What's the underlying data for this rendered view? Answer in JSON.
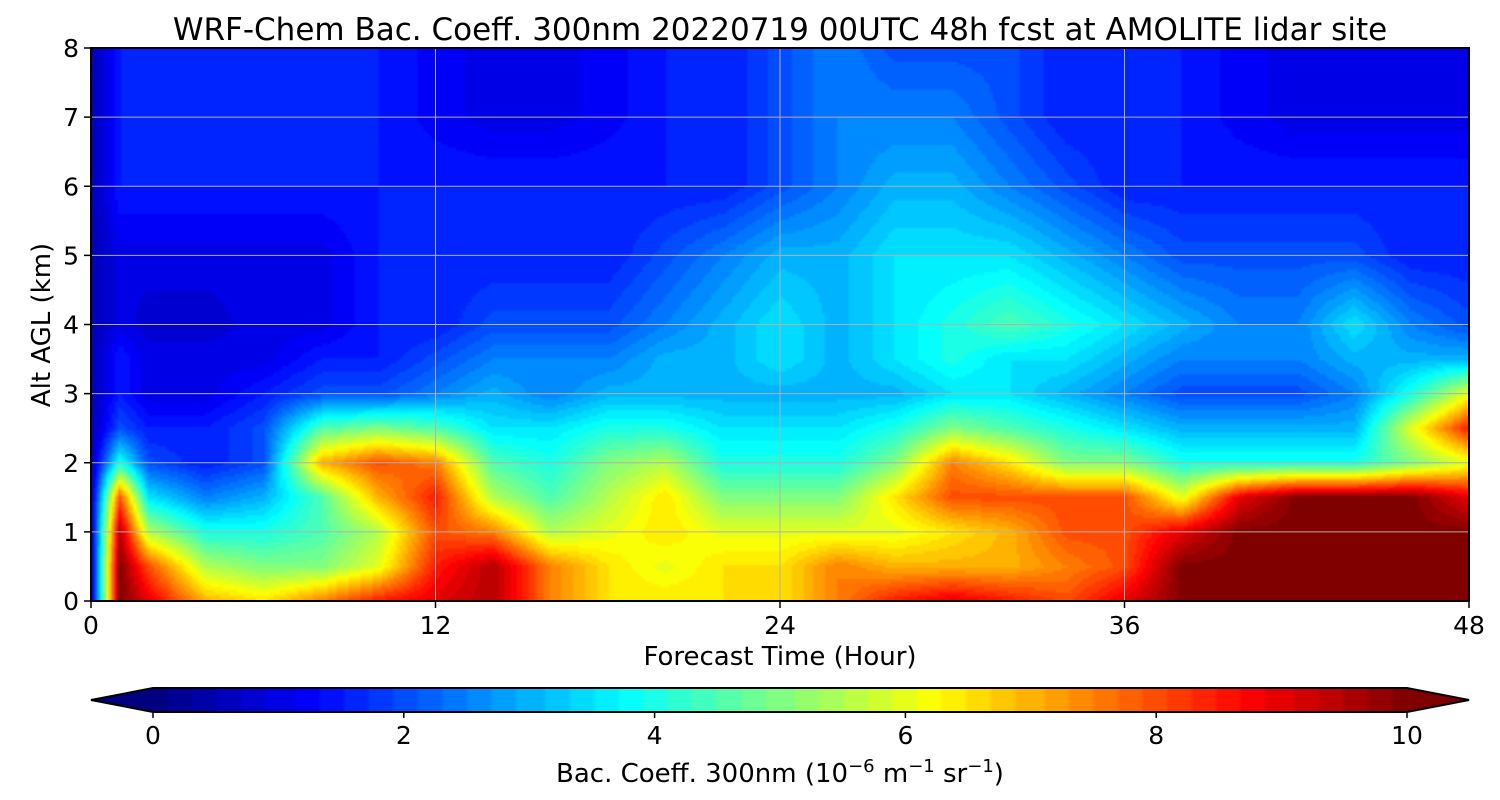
{
  "chart_data": {
    "type": "heatmap",
    "title": "WRF-Chem Bac. Coeff. 300nm  20220719 00UTC 48h fcst at AMOLITE lidar site",
    "xlabel": "Forecast Time (Hour)",
    "ylabel": "Alt AGL (km)",
    "xlim": [
      0,
      48
    ],
    "ylim": [
      0,
      8
    ],
    "x_ticks": [
      "0",
      "12",
      "24",
      "36",
      "48"
    ],
    "y_ticks": [
      "0",
      "1",
      "2",
      "3",
      "4",
      "5",
      "6",
      "7",
      "8"
    ],
    "grid": true,
    "colormap": "jet",
    "colorbar": {
      "label_main": "Bac. Coeff. 300nm  (10",
      "label_exp1": "−6",
      "label_mid": " m",
      "label_exp2": "−1",
      "label_mid2": " sr",
      "label_exp3": "−1",
      "label_end": ")",
      "range": [
        0,
        10
      ],
      "extend": "both",
      "ticks": [
        "0",
        "2",
        "4",
        "6",
        "8",
        "10"
      ],
      "orientation": "horizontal",
      "placement": "bottom"
    },
    "x_hours": [
      0,
      1,
      2,
      4,
      6,
      8,
      10,
      12,
      14,
      16,
      18,
      20,
      22,
      24,
      26,
      28,
      30,
      32,
      34,
      36,
      38,
      40,
      42,
      44,
      46,
      48
    ],
    "y_km": [
      0,
      0.5,
      1.0,
      1.5,
      2.0,
      2.5,
      3.0,
      3.5,
      4.0,
      5.0,
      6.0,
      7.0,
      8.0
    ],
    "values_by_altitude": [
      [
        0.5,
        10,
        9,
        7,
        6.5,
        7.5,
        8.5,
        9,
        9.5,
        7.5,
        6.5,
        6.5,
        6.5,
        6.5,
        7.5,
        8.5,
        9,
        8.5,
        8,
        9,
        10,
        10,
        10,
        10,
        10,
        10
      ],
      [
        0.5,
        10,
        8,
        5.5,
        5,
        5,
        6,
        8.5,
        9.5,
        7.5,
        6.5,
        6,
        6.5,
        6.5,
        7.5,
        7,
        7,
        7,
        7.5,
        8,
        10,
        10,
        10,
        10,
        10,
        10
      ],
      [
        0.5,
        9.5,
        5.5,
        4,
        4,
        4.5,
        5.5,
        8,
        7.5,
        5.5,
        6,
        6.5,
        6,
        6,
        6,
        6,
        6.5,
        7,
        8,
        8,
        9,
        10,
        10,
        10,
        10,
        10
      ],
      [
        0.5,
        8,
        3.5,
        2.5,
        3,
        4.5,
        7,
        8.5,
        5.5,
        4.5,
        5.5,
        6.5,
        5,
        5,
        5,
        6.5,
        8,
        8,
        8,
        8,
        6,
        9,
        10,
        10,
        10,
        9
      ],
      [
        0.5,
        4,
        2,
        1.5,
        2,
        7,
        8,
        7.5,
        4.5,
        4,
        5,
        5.5,
        4,
        4,
        4,
        5,
        7.5,
        6.5,
        5,
        5,
        4,
        4,
        4,
        4,
        5,
        6
      ],
      [
        0.5,
        2,
        1.5,
        1.5,
        2,
        4.5,
        5,
        4.5,
        3.5,
        3.5,
        4,
        4,
        3.5,
        3.5,
        3.5,
        4,
        5,
        4.5,
        4,
        3.5,
        3,
        3,
        3,
        3,
        6,
        8.5
      ],
      [
        0.5,
        1.5,
        1,
        1,
        1.5,
        2,
        2,
        2.5,
        3,
        2.5,
        3,
        3,
        3,
        3,
        3,
        3,
        3.5,
        3.5,
        3,
        2.5,
        2,
        2,
        2,
        2.5,
        4,
        6
      ],
      [
        0.5,
        1.5,
        1,
        1,
        1,
        1.5,
        1.5,
        2,
        2.5,
        2.5,
        2.5,
        3,
        3,
        3.5,
        3,
        3.5,
        4,
        3.5,
        3.5,
        3,
        2.5,
        2.5,
        2.5,
        3,
        3,
        3
      ],
      [
        0.5,
        1,
        0.8,
        0.8,
        1,
        1,
        1.5,
        1.5,
        2,
        2,
        2,
        2.5,
        3,
        3.5,
        3,
        3.5,
        4,
        4.5,
        4,
        3.5,
        3,
        2.5,
        2.5,
        3.5,
        2.5,
        2
      ],
      [
        0.5,
        1,
        1,
        1,
        1,
        1,
        1.5,
        1.5,
        1.5,
        1.5,
        1.5,
        2,
        2.5,
        3,
        3,
        3.5,
        3.5,
        3.5,
        3,
        2.5,
        2,
        2,
        2,
        2,
        1.5,
        1.5
      ],
      [
        0.5,
        1.5,
        1.5,
        1.5,
        1.5,
        1.5,
        1.5,
        1.5,
        1.5,
        1.5,
        1.5,
        1.5,
        1.5,
        2,
        2.5,
        3,
        3,
        2.5,
        2,
        1.5,
        1.5,
        1.5,
        1.5,
        1.5,
        1.5,
        1.5
      ],
      [
        0.5,
        1.5,
        1.5,
        1.5,
        1.5,
        1.5,
        1.5,
        1.2,
        1,
        1,
        1.2,
        1.5,
        1.5,
        2,
        2.5,
        2.5,
        2.5,
        2,
        1.5,
        1.5,
        1.5,
        1.2,
        1,
        1,
        1,
        1
      ],
      [
        0.5,
        1.5,
        1.5,
        1.5,
        1.5,
        1.5,
        1.5,
        1.2,
        1,
        1,
        1.2,
        1.5,
        1.5,
        2,
        2.5,
        2,
        2,
        2,
        1.5,
        1.5,
        1.5,
        1.2,
        1,
        1,
        1,
        1
      ]
    ]
  }
}
